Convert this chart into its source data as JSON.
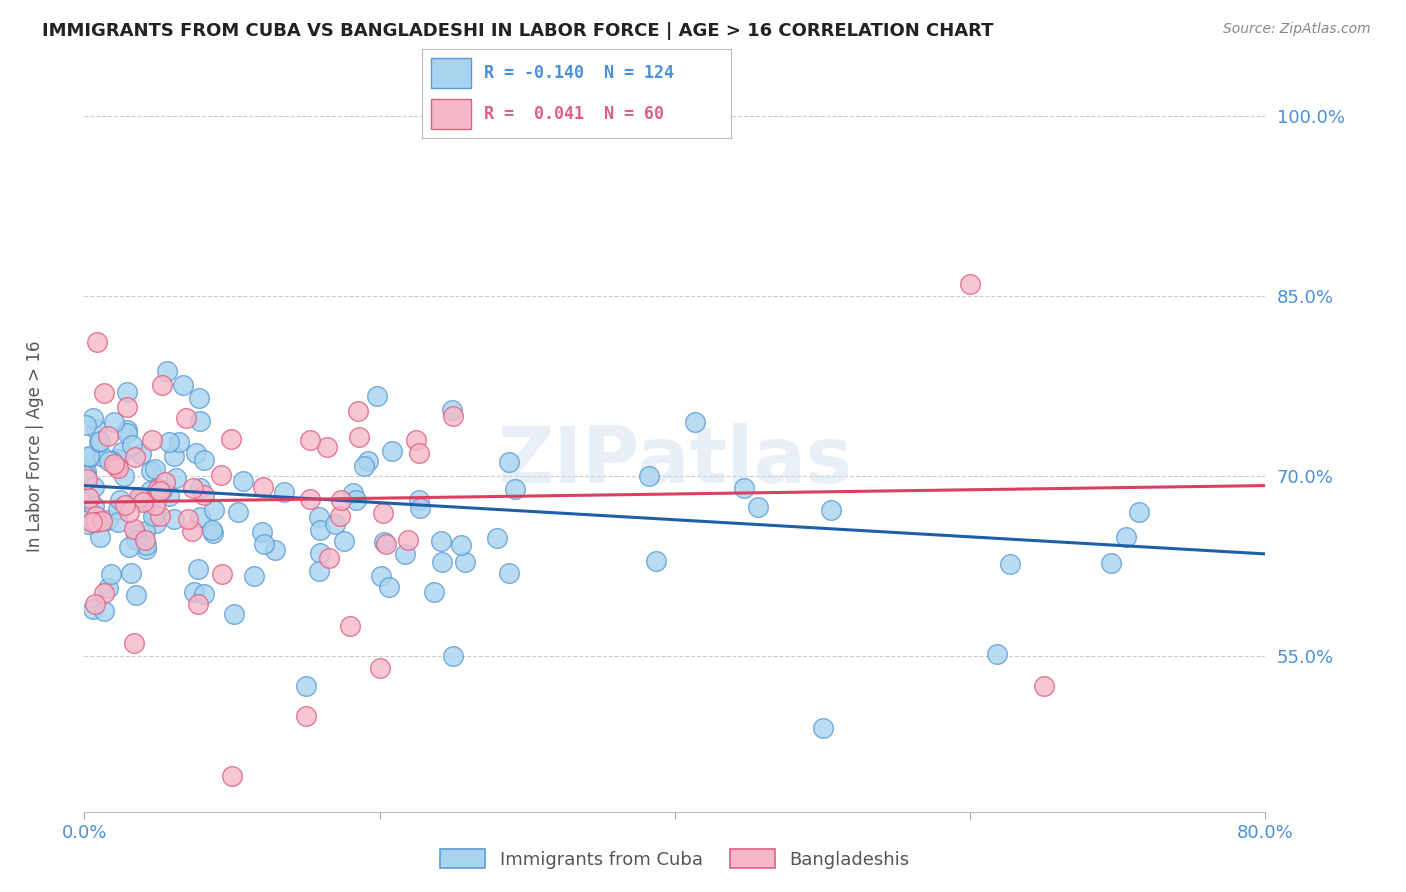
{
  "title": "IMMIGRANTS FROM CUBA VS BANGLADESHI IN LABOR FORCE | AGE > 16 CORRELATION CHART",
  "source": "Source: ZipAtlas.com",
  "ylabel": "In Labor Force | Age > 16",
  "xlim": [
    0.0,
    80.0
  ],
  "ylim": [
    42.0,
    103.0
  ],
  "yticks": [
    55.0,
    70.0,
    85.0,
    100.0
  ],
  "ytick_labels": [
    "55.0%",
    "70.0%",
    "85.0%",
    "100.0%"
  ],
  "blue_R": -0.14,
  "blue_N": 124,
  "pink_R": 0.041,
  "pink_N": 60,
  "blue_color": "#A8D4EF",
  "pink_color": "#F5B8C8",
  "blue_edge_color": "#5B9BD5",
  "pink_edge_color": "#E06080",
  "blue_line_color": "#1F5FA6",
  "pink_line_color": "#D94060",
  "title_color": "#222222",
  "axis_label_color": "#555555",
  "tick_color": "#4A90D9",
  "grid_color": "#CCCCCC",
  "watermark": "ZIPatlas",
  "background_color": "#FFFFFF",
  "legend_label_blue": "Immigrants from Cuba",
  "legend_label_pink": "Bangladeshis",
  "blue_trend_x0": 0.0,
  "blue_trend_y0": 69.2,
  "blue_trend_x1": 80.0,
  "blue_trend_y1": 63.5,
  "pink_trend_x0": 0.0,
  "pink_trend_y0": 67.8,
  "pink_trend_x1": 80.0,
  "pink_trend_y1": 69.2
}
